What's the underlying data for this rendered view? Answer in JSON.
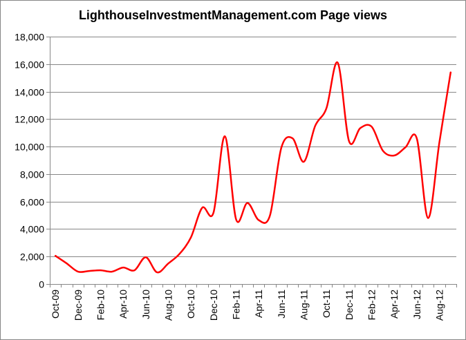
{
  "chart_data": {
    "type": "line",
    "title": "LighthouseInvestmentManagement.com Page views",
    "xlabel": "",
    "ylabel": "",
    "ylim": [
      0,
      18000
    ],
    "yticks": [
      "0",
      "2,000",
      "4,000",
      "6,000",
      "8,000",
      "10,000",
      "12,000",
      "14,000",
      "16,000",
      "18,000"
    ],
    "grid": true,
    "legend": "none",
    "line_color": "#ff0000",
    "grid_color": "#868686",
    "x": [
      "Oct-09",
      "Nov-09",
      "Dec-09",
      "Jan-10",
      "Feb-10",
      "Mar-10",
      "Apr-10",
      "May-10",
      "Jun-10",
      "Jul-10",
      "Aug-10",
      "Sep-10",
      "Oct-10",
      "Nov-10",
      "Dec-10",
      "Jan-11",
      "Feb-11",
      "Mar-11",
      "Apr-11",
      "May-11",
      "Jun-11",
      "Jul-11",
      "Aug-11",
      "Sep-11",
      "Oct-11",
      "Nov-11",
      "Dec-11",
      "Jan-12",
      "Feb-12",
      "Mar-12",
      "Apr-12",
      "May-12",
      "Jun-12",
      "Jul-12",
      "Aug-12",
      "Sep-12"
    ],
    "x_tick_labels": [
      "Oct-09",
      "Dec-09",
      "Feb-10",
      "Apr-10",
      "Jun-10",
      "Aug-10",
      "Oct-10",
      "Dec-10",
      "Feb-11",
      "Apr-11",
      "Jun-11",
      "Aug-11",
      "Oct-11",
      "Dec-11",
      "Feb-12",
      "Apr-12",
      "Jun-12",
      "Aug-12"
    ],
    "series": [
      {
        "values": [
          2050,
          1500,
          900,
          950,
          1000,
          900,
          1200,
          1000,
          1950,
          850,
          1500,
          2200,
          3400,
          5550,
          5200,
          10750,
          4700,
          5900,
          4650,
          5000,
          9900,
          10600,
          8900,
          11500,
          12800,
          16100,
          10400,
          11350,
          11450,
          9700,
          9350,
          9950,
          10600,
          4800,
          10300,
          15400
        ]
      }
    ]
  }
}
